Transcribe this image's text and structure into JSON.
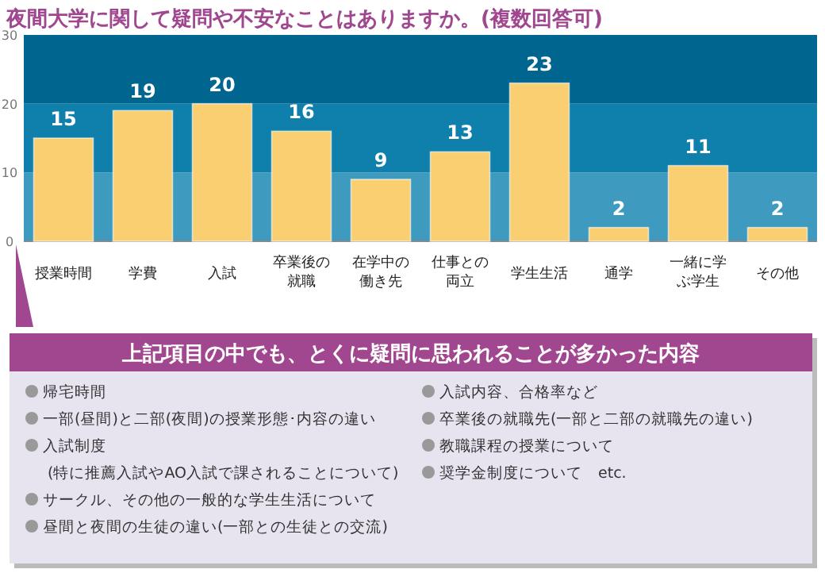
{
  "chart_data": [
    {
      "type": "bar",
      "title": "夜間大学に関して疑問や不安なことはありますか。(複数回答可)",
      "categories": [
        "授業時間",
        "学費",
        "入試",
        "卒業後の就職",
        "在学中の働き先",
        "仕事との両立",
        "学生生活",
        "通学",
        "一緒に学ぶ学生",
        "その他"
      ],
      "values": [
        15,
        19,
        20,
        16,
        9,
        13,
        23,
        2,
        11,
        2
      ],
      "color": "#f9cf72",
      "ylim": [
        0,
        30
      ],
      "yticks": [
        0,
        10,
        20,
        30
      ],
      "data_labels": true,
      "grid": false,
      "bands": [
        {
          "axis": "y",
          "from": 0,
          "to": 10,
          "color": "#3f9abf"
        },
        {
          "axis": "y",
          "from": 10,
          "to": 20,
          "color": "#0f7fab"
        },
        {
          "axis": "y",
          "from": 20,
          "to": 30,
          "color": "#00668f"
        }
      ]
    },
    {
      "type": "other",
      "title": "上記項目の中でも、とくに疑問に思われることが多かった内容",
      "annotations": [
        "帰宅時間",
        "一部(昼間)と二部(夜間)の授業形態･内容の違い",
        "入試制度\n(特に推薦入試やAO入試で課されることについて)",
        "サークル、その他の一般的な学生生活について",
        "昼間と夜間の生徒の違い(一部との生徒との交流)",
        "入試内容、合格率など",
        "卒業後の就職先(一部と二部の就職先の違い)",
        "教職課程の授業について",
        "奨学金制度について　etc."
      ]
    }
  ]
}
